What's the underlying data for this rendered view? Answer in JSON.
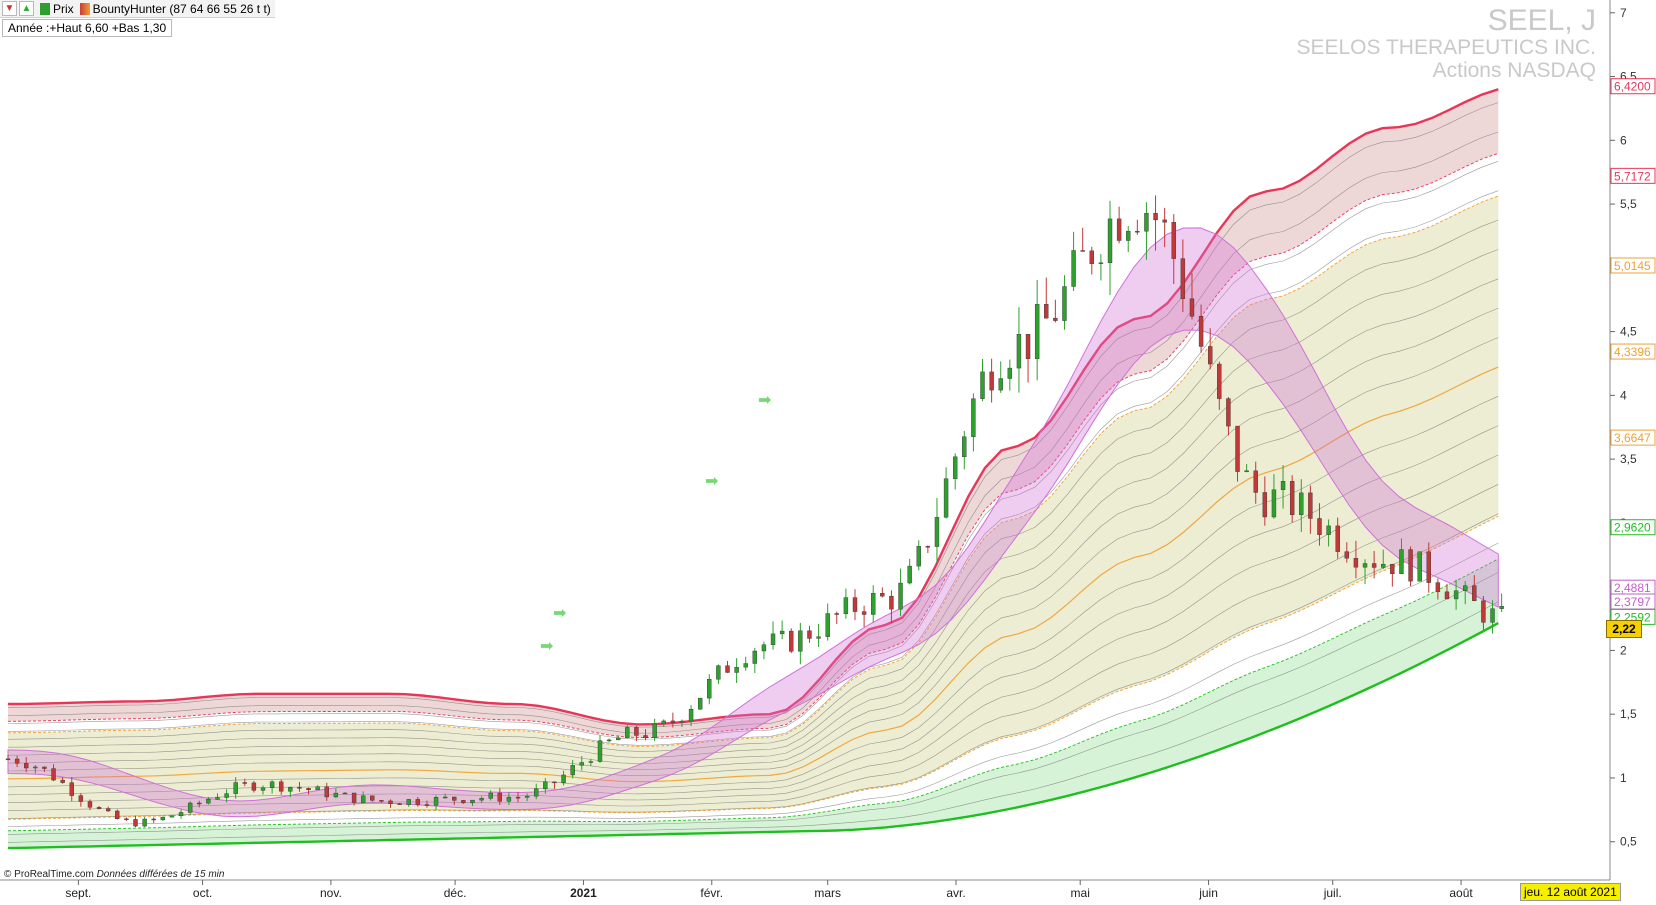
{
  "toolbar": {
    "btn_down": "▼",
    "btn_up": "▲",
    "series1": "Prix",
    "series2": "BountyHunter (87 64 66 55 26 t t)",
    "series1_color": "#2e9e2e",
    "series2_color": "#c83c3c"
  },
  "subtitle": "Année :+Haut 6,60 +Bas 1,30",
  "watermark": {
    "ticker": "SEEL, J",
    "company": "SEELOS THERAPEUTICS INC.",
    "market": "Actions NASDAQ"
  },
  "credit": "© ProRealTime.com",
  "credit_note": "Données différées de 15 min",
  "current_date": "jeu. 12 août 2021",
  "last_price": "2,22",
  "colors": {
    "up": "#2ea02e",
    "down": "#c03838",
    "red_band": "#e8365a",
    "green_band": "#1fbf1f",
    "orange": "#f0a030",
    "magenta": "#d070d8"
  },
  "chart_data": {
    "type": "line",
    "title": "",
    "xlabel": "",
    "ylabel": "",
    "ylim": [
      0.2,
      7.1
    ],
    "y_ticks": [
      "0,5",
      "1",
      "1,5",
      "2",
      "2,5",
      "3",
      "3,5",
      "4",
      "4,5",
      "5",
      "5,5",
      "6",
      "6,5",
      "7"
    ],
    "y_tick_values": [
      0.5,
      1,
      1.5,
      2,
      2.5,
      3,
      3.5,
      4,
      4.5,
      5,
      5.5,
      6,
      6.5,
      7
    ],
    "x_labels": [
      "sept.",
      "oct.",
      "nov.",
      "déc.",
      "2021",
      "févr.",
      "mars",
      "avr.",
      "mai",
      "juin",
      "juil.",
      "août"
    ],
    "x_label_months": [
      "2020-09",
      "2020-10",
      "2020-11",
      "2020-12",
      "2021-01",
      "2021-02",
      "2021-03",
      "2021-04",
      "2021-05",
      "2021-06",
      "2021-07",
      "2021-08"
    ],
    "price_tags": [
      {
        "label": "6,4200",
        "value": 6.42,
        "color": "#e8365a"
      },
      {
        "label": "5,7172",
        "value": 5.7172,
        "color": "#e8365a"
      },
      {
        "label": "5,0145",
        "value": 5.0145,
        "color": "#f0a030"
      },
      {
        "label": "4,3396",
        "value": 4.3396,
        "color": "#f0a030"
      },
      {
        "label": "3,6647",
        "value": 3.6647,
        "color": "#f0a030"
      },
      {
        "label": "2,9620",
        "value": 2.962,
        "color": "#1fbf1f"
      },
      {
        "label": "2,4881",
        "value": 2.4881,
        "color": "#c060c8"
      },
      {
        "label": "2,3797",
        "value": 2.3797,
        "color": "#c060c8"
      },
      {
        "label": "2,2592",
        "value": 2.2592,
        "color": "#1fbf1f"
      }
    ],
    "series": [
      {
        "name": "Prix",
        "x": [
          "2020-08",
          "2020-09",
          "2020-10",
          "2020-11",
          "2020-12",
          "2021-01",
          "2021-02",
          "2021-03",
          "2021-04",
          "2021-05",
          "2021-06",
          "2021-07",
          "2021-08"
        ],
        "values": [
          1.15,
          0.65,
          0.95,
          0.82,
          0.85,
          1.35,
          2.05,
          2.4,
          4.4,
          5.5,
          3.2,
          2.7,
          2.22
        ]
      },
      {
        "name": "BountyHunter",
        "x": [
          "2020-08",
          "2020-09",
          "2020-10",
          "2020-11",
          "2020-12",
          "2021-01",
          "2021-02",
          "2021-03",
          "2021-04",
          "2021-05",
          "2021-06",
          "2021-07",
          "2021-08"
        ],
        "values": [
          1.58,
          1.6,
          1.66,
          1.66,
          1.58,
          1.42,
          1.5,
          2.2,
          3.6,
          4.6,
          5.6,
          6.1,
          6.42
        ]
      }
    ],
    "grid": false,
    "legend": "top-left"
  }
}
